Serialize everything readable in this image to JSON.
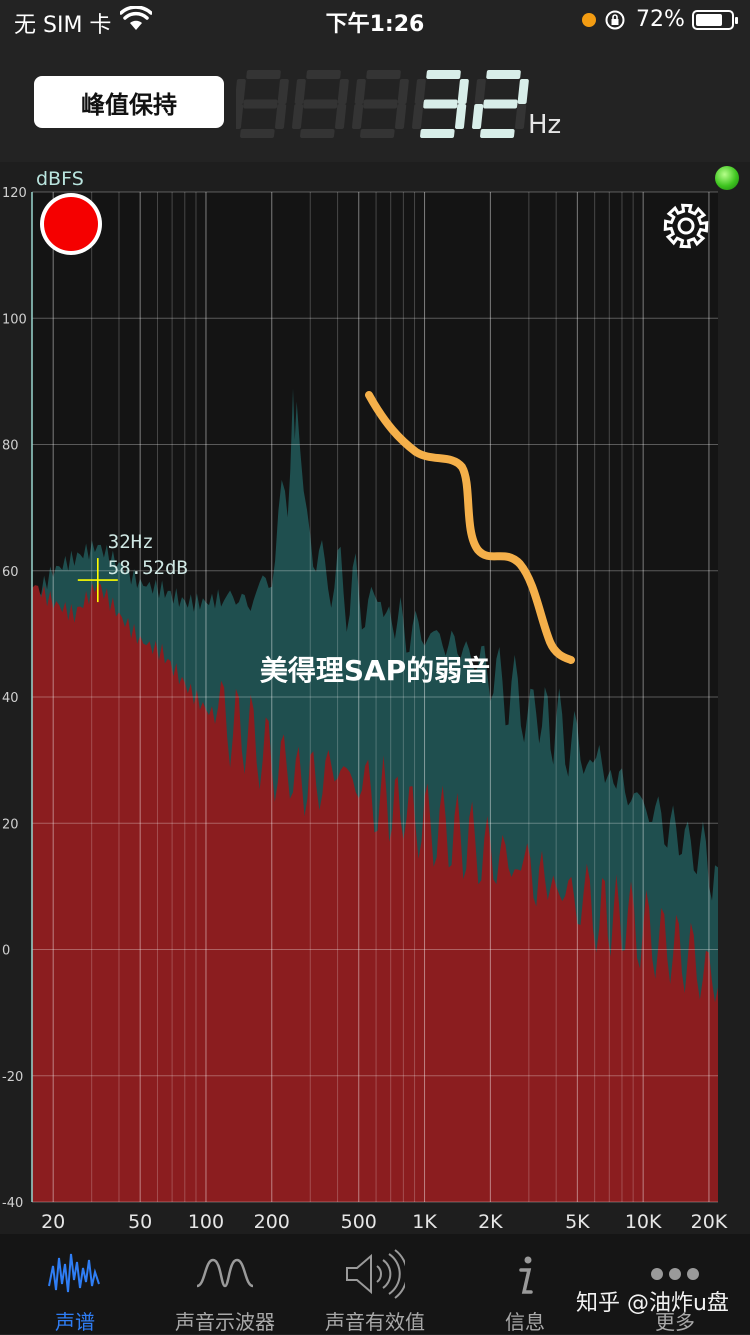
{
  "status_bar": {
    "carrier": "无 SIM 卡",
    "time": "下午1:26",
    "battery": "72%"
  },
  "header": {
    "peak_hold_label": "峰值保持",
    "frequency_value": "32",
    "frequency_unit": "Hz"
  },
  "chart_data": {
    "type": "area",
    "ylabel": "dBFS",
    "ylim": [
      -40,
      120
    ],
    "xscale": "log",
    "xlim": [
      16,
      22000
    ],
    "yticks": [
      120,
      100,
      80,
      60,
      40,
      20,
      0,
      -20,
      -40
    ],
    "xticks": [
      {
        "value": 20,
        "label": "20"
      },
      {
        "value": 50,
        "label": "50"
      },
      {
        "value": 100,
        "label": "100"
      },
      {
        "value": 200,
        "label": "200"
      },
      {
        "value": 500,
        "label": "500"
      },
      {
        "value": 1000,
        "label": "1K"
      },
      {
        "value": 2000,
        "label": "2K"
      },
      {
        "value": 5000,
        "label": "5K"
      },
      {
        "value": 10000,
        "label": "10K"
      },
      {
        "value": 20000,
        "label": "20K"
      }
    ],
    "cursor": {
      "freq_label": "32Hz",
      "level_label": "58.52dB",
      "x": 32,
      "y": 58.52
    },
    "annotation": "美得理SAP的弱音",
    "series": [
      {
        "color": "#1f4f4f",
        "x": [
          16,
          20,
          25,
          32,
          40,
          50,
          63,
          80,
          100,
          125,
          160,
          200,
          230,
          250,
          260,
          280,
          300,
          350,
          400,
          500,
          630,
          800,
          1000,
          1250,
          1600,
          2000,
          2500,
          3150,
          4000,
          5000,
          6300,
          8000,
          10000,
          12500,
          16000,
          20000,
          22000
        ],
        "values": [
          55,
          60,
          62,
          64,
          61,
          58,
          57,
          55,
          55,
          56,
          55,
          60,
          70,
          84,
          80,
          72,
          64,
          61,
          58,
          56,
          54,
          51,
          50,
          49,
          47,
          44,
          40,
          38,
          35,
          32,
          29,
          26,
          23,
          20,
          17,
          14,
          13
        ]
      },
      {
        "color": "#8b1d1f",
        "x": [
          16,
          20,
          25,
          32,
          40,
          50,
          63,
          80,
          100,
          125,
          160,
          200,
          250,
          300,
          400,
          500,
          630,
          800,
          1000,
          1250,
          1600,
          2000,
          2500,
          3150,
          4000,
          5000,
          6300,
          8000,
          10000,
          12500,
          16000,
          20000,
          22000
        ],
        "values": [
          58,
          55,
          53,
          58,
          53,
          49,
          47,
          42,
          38,
          36,
          34,
          30,
          28,
          26,
          29,
          26,
          24,
          22,
          20,
          19,
          17,
          15,
          14,
          12,
          10,
          8,
          6,
          5,
          3,
          1,
          -1,
          -4,
          -6
        ]
      }
    ]
  },
  "tabs": [
    {
      "label": "声谱",
      "icon": "spectrum-icon",
      "active": true
    },
    {
      "label": "声音示波器",
      "icon": "oscilloscope-wave-icon",
      "active": false
    },
    {
      "label": "声音有效值",
      "icon": "speaker-volume-icon",
      "active": false
    },
    {
      "label": "信息",
      "icon": "info-icon",
      "active": false
    },
    {
      "label": "更多",
      "icon": "more-dots-icon",
      "active": false
    }
  ],
  "watermark": "知乎 @油炸u盘",
  "colors": {
    "accent": "#2f7ef5",
    "peak_fill": "#1f4f4f",
    "live_fill": "#8b1d1f",
    "record": "#f50000",
    "highlight": "#f5b04a",
    "cursor": "#ffff00"
  }
}
